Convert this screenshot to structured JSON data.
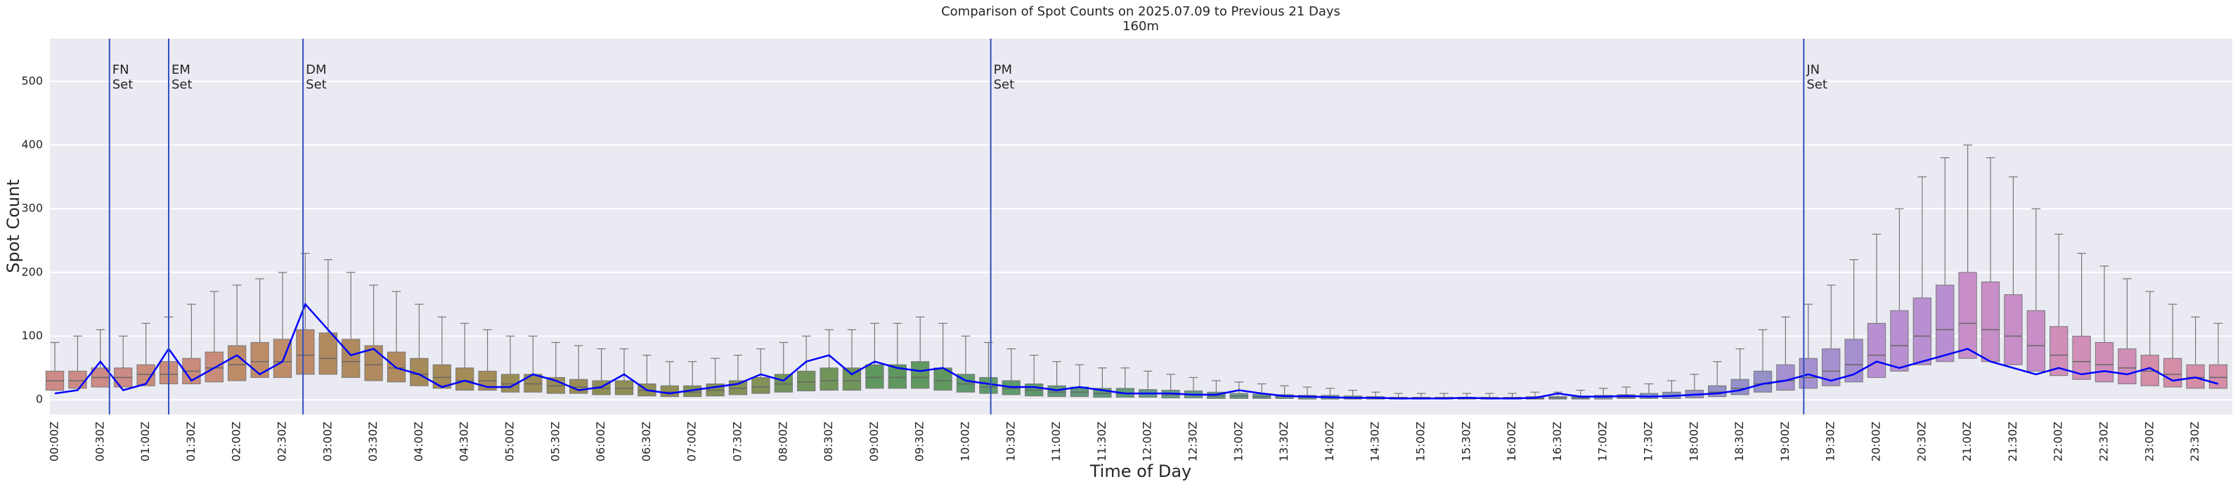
{
  "chart_data": {
    "type": "box",
    "title": "Comparison of Spot Counts on 2025.07.09 to Previous 21 Days",
    "subtitle": "160m",
    "x_label": "Time of Day",
    "y_label": "Spot Count",
    "categories": [
      "00:00Z",
      null,
      "00:30Z",
      null,
      "01:00Z",
      null,
      "01:30Z",
      null,
      "02:00Z",
      null,
      "02:30Z",
      null,
      "03:00Z",
      null,
      "03:30Z",
      null,
      "04:00Z",
      null,
      "04:30Z",
      null,
      "05:00Z",
      null,
      "05:30Z",
      null,
      "06:00Z",
      null,
      "06:30Z",
      null,
      "07:00Z",
      null,
      "07:30Z",
      null,
      "08:00Z",
      null,
      "08:30Z",
      null,
      "09:00Z",
      null,
      "09:30Z",
      null,
      "10:00Z",
      null,
      "10:30Z",
      null,
      "11:00Z",
      null,
      "11:30Z",
      null,
      "12:00Z",
      null,
      "12:30Z",
      null,
      "13:00Z",
      null,
      "13:30Z",
      null,
      "14:00Z",
      null,
      "14:30Z",
      null,
      "15:00Z",
      null,
      "15:30Z",
      null,
      "16:00Z",
      null,
      "16:30Z",
      null,
      "17:00Z",
      null,
      "17:30Z",
      null,
      "18:00Z",
      null,
      "18:30Z",
      null,
      "19:00Z",
      null,
      "19:30Z",
      null,
      "20:00Z",
      null,
      "20:30Z",
      null,
      "21:00Z",
      null,
      "21:30Z",
      null,
      "22:00Z",
      null,
      "22:30Z",
      null,
      "23:00Z",
      null,
      "23:30Z",
      null
    ],
    "median": [
      30,
      30,
      35,
      35,
      40,
      40,
      45,
      50,
      55,
      60,
      60,
      70,
      65,
      60,
      55,
      50,
      40,
      35,
      30,
      30,
      25,
      25,
      22,
      20,
      18,
      18,
      15,
      12,
      12,
      15,
      18,
      20,
      25,
      28,
      30,
      30,
      35,
      35,
      35,
      30,
      25,
      20,
      18,
      15,
      12,
      12,
      10,
      10,
      10,
      8,
      8,
      6,
      6,
      5,
      5,
      4,
      4,
      3,
      3,
      2,
      2,
      2,
      2,
      2,
      2,
      2,
      3,
      3,
      4,
      4,
      5,
      6,
      8,
      12,
      18,
      25,
      30,
      35,
      45,
      55,
      70,
      85,
      100,
      110,
      120,
      110,
      100,
      85,
      70,
      60,
      55,
      50,
      45,
      40,
      35,
      35
    ],
    "q1": [
      15,
      18,
      20,
      20,
      22,
      25,
      25,
      28,
      30,
      35,
      35,
      40,
      40,
      35,
      30,
      28,
      22,
      18,
      15,
      15,
      12,
      12,
      10,
      10,
      8,
      8,
      6,
      5,
      5,
      6,
      8,
      10,
      12,
      14,
      15,
      15,
      18,
      18,
      18,
      15,
      12,
      10,
      8,
      6,
      5,
      5,
      4,
      4,
      4,
      3,
      3,
      2,
      2,
      2,
      2,
      1,
      1,
      1,
      1,
      1,
      1,
      1,
      1,
      1,
      1,
      1,
      1,
      1,
      1,
      2,
      2,
      2,
      3,
      5,
      8,
      12,
      15,
      18,
      22,
      28,
      35,
      45,
      55,
      60,
      65,
      60,
      55,
      45,
      38,
      32,
      28,
      25,
      22,
      20,
      18,
      18
    ],
    "q3": [
      45,
      45,
      50,
      50,
      55,
      60,
      65,
      75,
      85,
      90,
      95,
      110,
      105,
      95,
      85,
      75,
      65,
      55,
      50,
      45,
      40,
      40,
      35,
      32,
      30,
      30,
      25,
      22,
      22,
      25,
      30,
      35,
      40,
      45,
      50,
      50,
      55,
      55,
      60,
      50,
      40,
      35,
      30,
      25,
      22,
      20,
      18,
      18,
      16,
      15,
      14,
      12,
      10,
      9,
      8,
      7,
      7,
      6,
      5,
      4,
      4,
      4,
      4,
      4,
      4,
      5,
      5,
      6,
      7,
      8,
      10,
      12,
      15,
      22,
      32,
      45,
      55,
      65,
      80,
      95,
      120,
      140,
      160,
      180,
      200,
      185,
      165,
      140,
      115,
      100,
      90,
      80,
      70,
      65,
      55,
      55
    ],
    "whisker_high": [
      90,
      100,
      110,
      100,
      120,
      130,
      150,
      170,
      180,
      190,
      200,
      230,
      220,
      200,
      180,
      170,
      150,
      130,
      120,
      110,
      100,
      100,
      90,
      85,
      80,
      80,
      70,
      60,
      60,
      65,
      70,
      80,
      90,
      100,
      110,
      110,
      120,
      120,
      130,
      120,
      100,
      90,
      80,
      70,
      60,
      55,
      50,
      50,
      45,
      40,
      35,
      30,
      28,
      25,
      22,
      20,
      18,
      15,
      12,
      10,
      10,
      10,
      10,
      10,
      10,
      12,
      12,
      15,
      18,
      20,
      25,
      30,
      40,
      60,
      80,
      110,
      130,
      150,
      180,
      220,
      260,
      300,
      350,
      380,
      400,
      380,
      350,
      300,
      260,
      230,
      210,
      190,
      170,
      150,
      130,
      120
    ],
    "today": [
      10,
      15,
      60,
      15,
      25,
      80,
      30,
      50,
      70,
      40,
      60,
      150,
      110,
      70,
      80,
      50,
      40,
      20,
      30,
      20,
      20,
      40,
      30,
      15,
      20,
      40,
      15,
      10,
      15,
      20,
      25,
      40,
      30,
      60,
      70,
      40,
      60,
      50,
      45,
      50,
      30,
      25,
      20,
      20,
      15,
      20,
      15,
      10,
      10,
      10,
      8,
      8,
      15,
      10,
      6,
      5,
      4,
      3,
      3,
      2,
      2,
      2,
      3,
      2,
      2,
      3,
      10,
      5,
      5,
      6,
      5,
      6,
      8,
      10,
      15,
      25,
      30,
      40,
      30,
      40,
      60,
      50,
      60,
      70,
      80,
      60,
      50,
      40,
      50,
      40,
      45,
      40,
      50,
      30,
      35,
      25
    ],
    "box_colors": [
      "#cc8b86",
      "#cc8b86",
      "#cc8b86",
      "#cc8b86",
      "#c98c7a",
      "#c98c7a",
      "#c98c7a",
      "#c98c7a",
      "#bf8c6a",
      "#bf8c6a",
      "#bf8c6a",
      "#bf8c6a",
      "#b08a5e",
      "#b08a5e",
      "#b08a5e",
      "#b08a5e",
      "#a48b58",
      "#a48b58",
      "#a48b58",
      "#a48b58",
      "#9a8c56",
      "#9a8c56",
      "#9a8c56",
      "#9a8c56",
      "#8f8e56",
      "#8f8e56",
      "#8f8e56",
      "#8f8e56",
      "#839058",
      "#839058",
      "#839058",
      "#839058",
      "#70945a",
      "#70945a",
      "#70945a",
      "#70945a",
      "#5f985e",
      "#5f985e",
      "#5f985e",
      "#5f985e",
      "#5f9a6c",
      "#5f9a6c",
      "#5f9a6c",
      "#5f9a6c",
      "#609a7a",
      "#609a7a",
      "#609a7a",
      "#609a7a",
      "#639a86",
      "#639a86",
      "#639a86",
      "#639a86",
      "#66998f",
      "#66998f",
      "#66998f",
      "#66998f",
      "#6a9896",
      "#6a9896",
      "#6a9896",
      "#6a9896",
      "#70969e",
      "#70969e",
      "#70969e",
      "#70969e",
      "#7894aa",
      "#7894aa",
      "#7894aa",
      "#7894aa",
      "#8492ba",
      "#8492ba",
      "#8492ba",
      "#8492ba",
      "#9490c8",
      "#9490c8",
      "#9490c8",
      "#9490c8",
      "#a590d0",
      "#a590d0",
      "#a590d0",
      "#a590d0",
      "#b88fd0",
      "#b88fd0",
      "#b88fd0",
      "#b88fd0",
      "#c88ec8",
      "#c88ec8",
      "#c88ec8",
      "#c88ec8",
      "#d08eb8",
      "#d08eb8",
      "#d08eb8",
      "#d08eb8",
      "#d48ea8",
      "#d48ea8",
      "#d48ea8",
      "#d48ea8"
    ],
    "line_color": "#0000ff",
    "vline_color": "#3050c0",
    "vlines": [
      {
        "x": 2.4,
        "label": [
          "FN",
          "Set"
        ]
      },
      {
        "x": 5,
        "label": [
          "EM",
          "Set"
        ]
      },
      {
        "x": 10.9,
        "label": [
          "DM",
          "Set"
        ]
      },
      {
        "x": 41.1,
        "label": [
          "PM",
          "Set"
        ]
      },
      {
        "x": 76.8,
        "label": [
          "JN",
          "Set"
        ]
      }
    ],
    "ylim": [
      -23,
      567
    ],
    "yticks": [
      0,
      100,
      200,
      300,
      400,
      500
    ],
    "grid": true
  }
}
